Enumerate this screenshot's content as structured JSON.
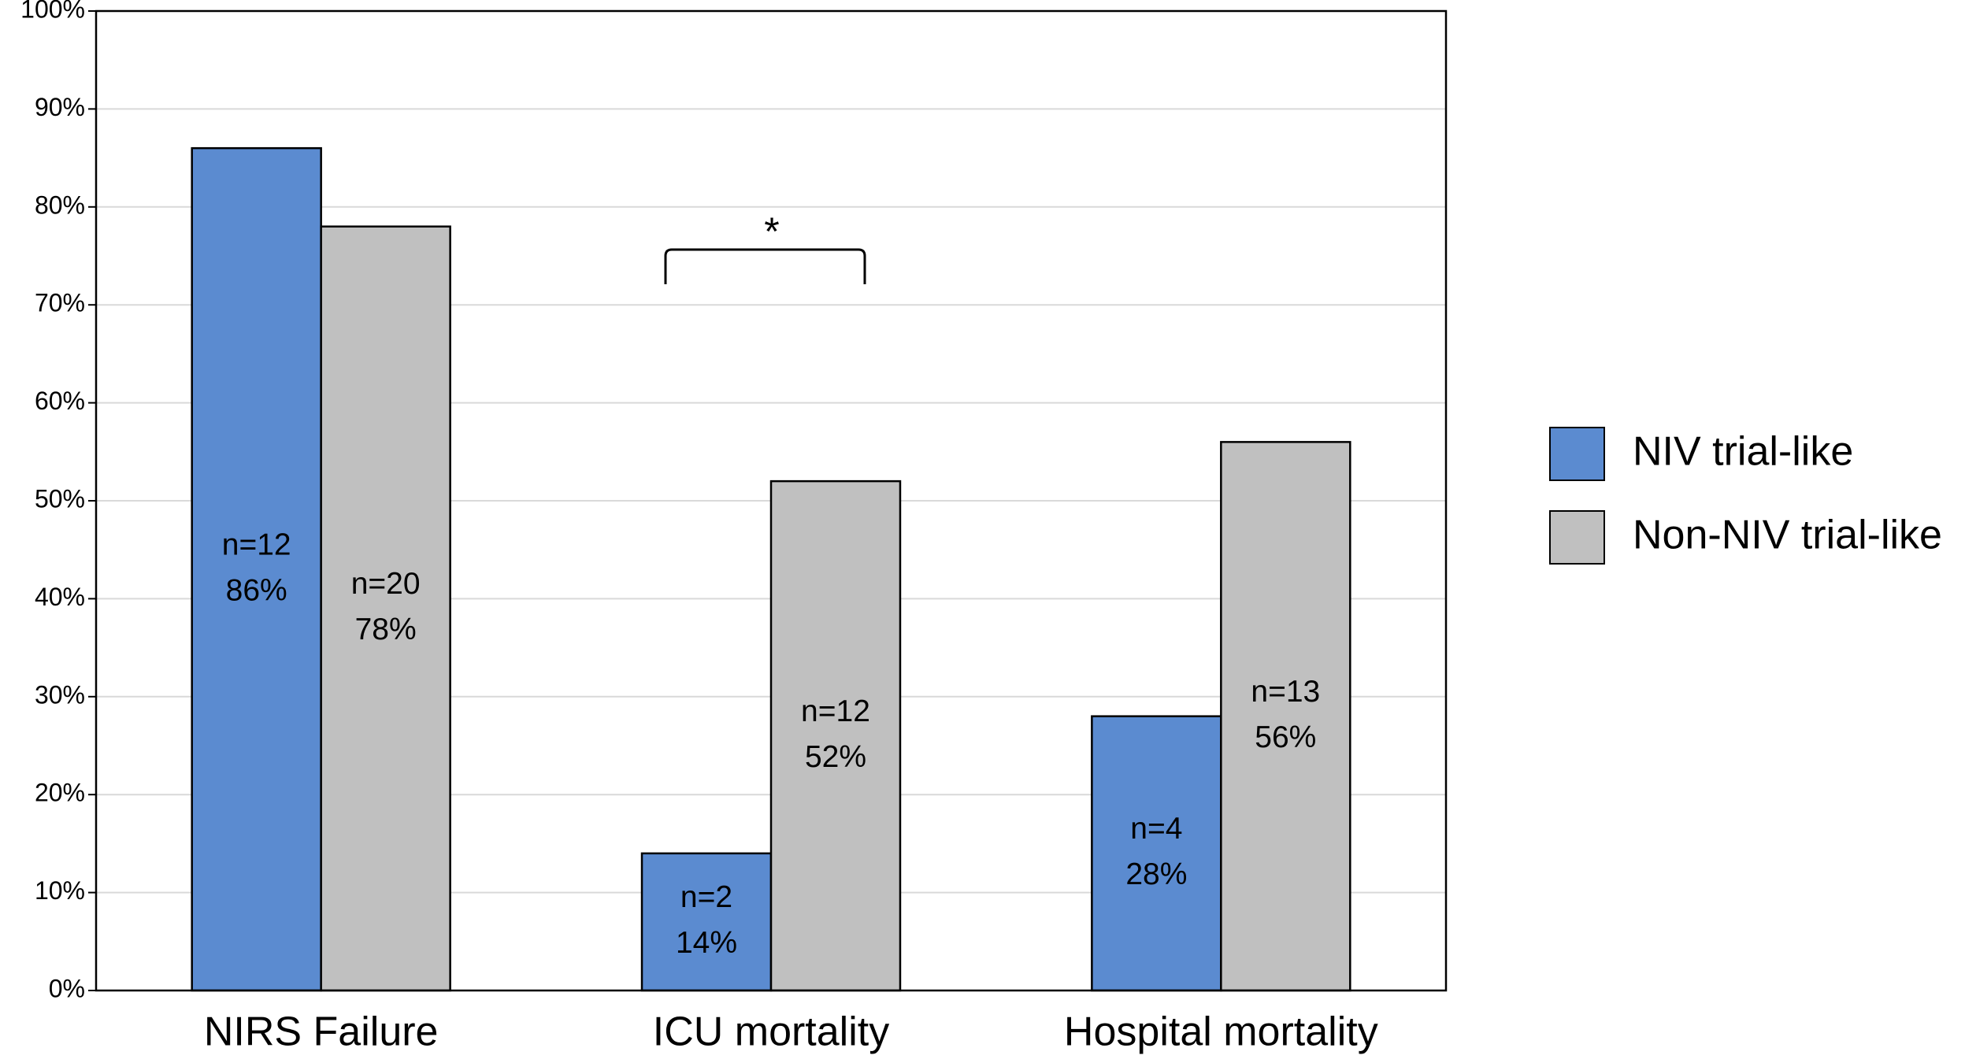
{
  "chart_data": {
    "type": "bar",
    "categories": [
      "NIRS Failure",
      "ICU mortality",
      "Hospital mortality"
    ],
    "series": [
      {
        "name": "NIV trial-like",
        "color": "#5b8bd0",
        "label_color": "#ffffff",
        "values": [
          86,
          14,
          28
        ],
        "value_labels": [
          "86%",
          "14%",
          "28%"
        ],
        "count_labels": [
          "n=12",
          "n=2",
          "n=4"
        ]
      },
      {
        "name": "Non-NIV trial-like",
        "color": "#c0c0c0",
        "label_color": "#000000",
        "values": [
          78,
          52,
          56
        ],
        "value_labels": [
          "78%",
          "52%",
          "56%"
        ],
        "count_labels": [
          "n=20",
          "n=12",
          "n=13"
        ]
      }
    ],
    "ylim": [
      0,
      100
    ],
    "yticks": [
      {
        "value": 0,
        "label": "0%"
      },
      {
        "value": 10,
        "label": "10%"
      },
      {
        "value": 20,
        "label": "20%"
      },
      {
        "value": 30,
        "label": "30%"
      },
      {
        "value": 40,
        "label": "40%"
      },
      {
        "value": 50,
        "label": "50%"
      },
      {
        "value": 60,
        "label": "60%"
      },
      {
        "value": 70,
        "label": "70%"
      },
      {
        "value": 80,
        "label": "80%"
      },
      {
        "value": 90,
        "label": "90%"
      },
      {
        "value": 100,
        "label": "100%"
      }
    ],
    "grid": true,
    "legend": "right",
    "annotations": [
      "*"
    ]
  }
}
